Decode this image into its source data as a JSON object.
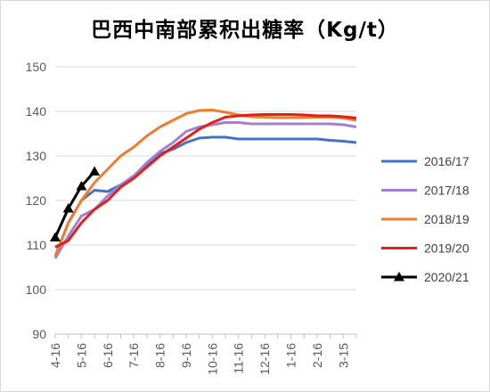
{
  "chart_data": {
    "type": "line",
    "title": "巴西中南部累积出糖率（Kg/t）",
    "xlabel": "",
    "ylabel": "",
    "ylim": [
      90,
      150
    ],
    "yticks": [
      90,
      100,
      110,
      120,
      130,
      140,
      150
    ],
    "categories": [
      "4-16",
      "5-1",
      "5-16",
      "6-1",
      "6-16",
      "7-1",
      "7-16",
      "8-1",
      "8-16",
      "9-1",
      "9-16",
      "10-1",
      "10-16",
      "11-1",
      "11-16",
      "12-1",
      "12-16",
      "1-1",
      "1-16",
      "2-1",
      "2-16",
      "3-1",
      "3-15",
      "3-31"
    ],
    "category_labels": [
      "4-16",
      "5-16",
      "6-16",
      "7-16",
      "8-16",
      "9-16",
      "10-16",
      "11-16",
      "12-16",
      "1-16",
      "2-16",
      "3-15"
    ],
    "grid": "horizontal",
    "legend_position": "right",
    "series": [
      {
        "name": "2016/17",
        "color": "#4472C4",
        "marker": "none",
        "values": [
          107.5,
          115,
          120,
          122.3,
          122,
          123.5,
          125.5,
          128,
          130.5,
          131.5,
          133,
          134,
          134.2,
          134.2,
          133.8,
          133.8,
          133.8,
          133.8,
          133.8,
          133.8,
          133.8,
          133.5,
          133.3,
          133
        ]
      },
      {
        "name": "2017/18",
        "color": "#A57FD1",
        "marker": "none",
        "values": [
          107,
          112,
          116.5,
          118,
          121,
          123.5,
          125.5,
          128.5,
          131,
          133,
          135.5,
          136.5,
          137,
          137.5,
          137.5,
          137.2,
          137.2,
          137.2,
          137.2,
          137.2,
          137.2,
          137.2,
          137,
          136.5
        ]
      },
      {
        "name": "2018/19",
        "color": "#ED7D31",
        "marker": "none",
        "values": [
          107.5,
          115,
          120,
          124,
          127,
          130,
          132,
          134.5,
          136.5,
          138,
          139.5,
          140.2,
          140.3,
          139.8,
          139.2,
          138.8,
          138.7,
          138.6,
          138.6,
          138.6,
          138.7,
          138.7,
          138.5,
          138
        ]
      },
      {
        "name": "2019/20",
        "color": "#E0201B",
        "marker": "none",
        "values": [
          109.5,
          111,
          115,
          118,
          120,
          123,
          125,
          127.5,
          130,
          132,
          134,
          136,
          137.5,
          138.7,
          139,
          139.2,
          139.3,
          139.3,
          139.3,
          139.2,
          139,
          139,
          138.8,
          138.5
        ]
      },
      {
        "name": "2020/21",
        "color": "#000000",
        "marker": "triangle",
        "values": [
          111.7,
          118.2,
          123.2,
          126.5,
          null,
          null,
          null,
          null,
          null,
          null,
          null,
          null,
          null,
          null,
          null,
          null,
          null,
          null,
          null,
          null,
          null,
          null,
          null,
          null
        ]
      }
    ]
  }
}
